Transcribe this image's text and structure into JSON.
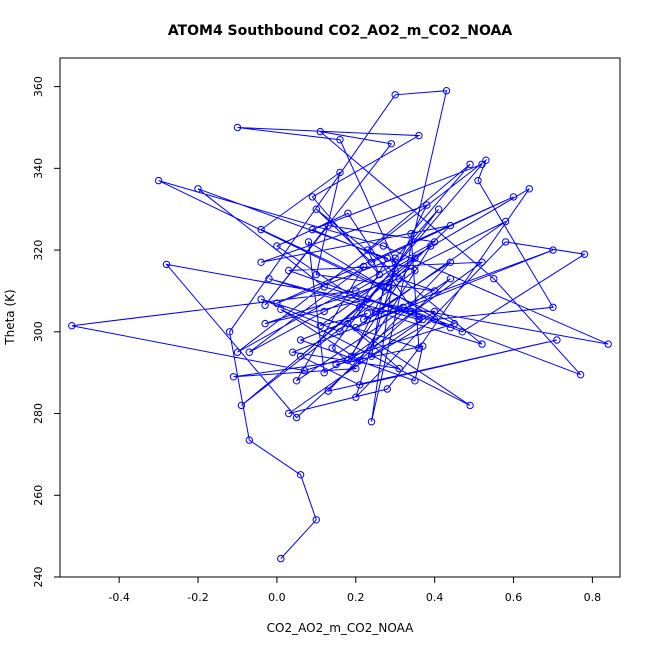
{
  "chart_data": {
    "type": "line",
    "title": "ATOM4 Southbound CO2_AO2_m_CO2_NOAA",
    "xlabel": "CO2_AO2_m_CO2_NOAA",
    "ylabel": "Theta (K)",
    "xlim": [
      -0.55,
      0.87
    ],
    "ylim": [
      240,
      367
    ],
    "xticks": [
      -0.4,
      -0.2,
      0.0,
      0.2,
      0.4,
      0.6,
      0.8
    ],
    "xtick_labels": [
      "-0.4",
      "-0.2",
      "0.0",
      "0.2",
      "0.4",
      "0.6",
      "0.8"
    ],
    "yticks": [
      240,
      260,
      280,
      300,
      320,
      340,
      360
    ],
    "ytick_labels": [
      "240",
      "260",
      "280",
      "300",
      "320",
      "340",
      "360"
    ],
    "grid": false,
    "marker": "open-circle",
    "color": "#0000ff",
    "series": [
      {
        "x": [
          0.01,
          0.1,
          0.06,
          -0.07,
          -0.12,
          0.3,
          0.43,
          0.24,
          0.3,
          0.16,
          -0.1,
          0.36,
          0.09,
          0.26,
          0.23,
          0.49,
          0.34,
          0.36,
          0.64,
          0.2,
          -0.52,
          0.07,
          0.45,
          -0.3,
          0.27,
          0.84,
          -0.28,
          0.05,
          0.44,
          0.05,
          0.22,
          -0.07,
          0.12,
          0.58,
          0.2,
          0.32,
          0.77,
          0.55,
          0.11,
          0.29,
          -0.03,
          0.13,
          0.4,
          -0.1,
          0.53,
          0.51,
          0.7,
          0.4,
          0.24,
          0.27,
          -0.04,
          0.16,
          0.1,
          0.4,
          0.31,
          -0.03,
          0.23,
          0.37,
          0.12,
          0.08,
          0.44,
          0.03,
          0.52,
          0.19,
          0.38,
          -0.04,
          0.44,
          0.28,
          0.3,
          0.2,
          0.58,
          0.78,
          0.47,
          0.34,
          0.12,
          -0.2,
          0.28,
          0.21,
          -0.09,
          0.35,
          0.09,
          0.52,
          0.16,
          -0.04,
          0.36,
          0.28,
          0.03,
          0.4,
          0.25,
          0.0,
          0.18,
          0.36,
          -0.02,
          0.52,
          0.1,
          0.24,
          0.6,
          0.0,
          0.3,
          0.41,
          0.14,
          0.2,
          -0.11,
          0.18,
          0.35,
          0.06,
          0.21,
          0.71,
          0.13,
          0.44,
          0.22,
          0.7,
          0.04,
          0.31,
          0.18,
          0.49,
          0.01,
          0.21,
          0.39,
          0.11,
          0.23,
          0.06,
          0.35,
          0.37,
          0.15
        ],
        "y": [
          244.5,
          254,
          265,
          273.5,
          300,
          358,
          359,
          278,
          317,
          347,
          350,
          348,
          333,
          314,
          320,
          341,
          324,
          296,
          335,
          310,
          301.5,
          290.5,
          302,
          337,
          321,
          297,
          316.5,
          279,
          313,
          288,
          316,
          295,
          305,
          327,
          301,
          306,
          289.5,
          313,
          349,
          346,
          306.5,
          326,
          322,
          295,
          342,
          337,
          306,
          303,
          294,
          311,
          325,
          339,
          314,
          310,
          313,
          302,
          308,
          303,
          290,
          322,
          301,
          315,
          317,
          294,
          331,
          317,
          326,
          311,
          315,
          284,
          322,
          319,
          300,
          305,
          311,
          335,
          318,
          306,
          282,
          315,
          325,
          341,
          300,
          308,
          296,
          286,
          280,
          305,
          305,
          321,
          329,
          303,
          313,
          297,
          330,
          317,
          333,
          307,
          318,
          330,
          296,
          291,
          289,
          293,
          318,
          294,
          287,
          298,
          285.5,
          317,
          303,
          320,
          295,
          291,
          302,
          282,
          305.5,
          293,
          321,
          301.5,
          304.5,
          298,
          288,
          296.5,
          292
        ]
      }
    ]
  }
}
